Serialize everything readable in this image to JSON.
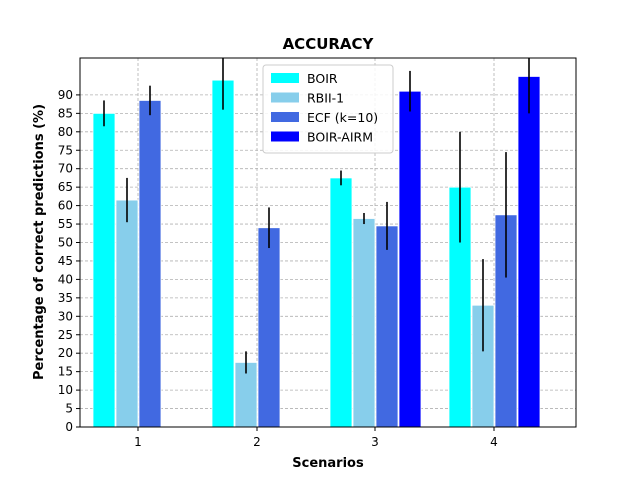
{
  "chart_data": {
    "type": "bar",
    "title": "ACCURACY",
    "xlabel": "Scenarios",
    "ylabel": "Percentage of correct predictions (%)",
    "categories": [
      "1",
      "2",
      "3",
      "4"
    ],
    "ylim": [
      0,
      100
    ],
    "yticks": [
      0,
      5,
      10,
      15,
      20,
      25,
      30,
      35,
      40,
      45,
      50,
      55,
      60,
      65,
      70,
      75,
      80,
      85,
      90
    ],
    "grid": true,
    "legend_position": "top-center",
    "series": [
      {
        "name": "BOIR",
        "color": "#00ffff",
        "values": [
          85,
          94,
          67.5,
          65
        ],
        "errors": [
          3.5,
          8,
          2,
          15
        ]
      },
      {
        "name": "RBII-1",
        "color": "#87ceeb",
        "values": [
          61.5,
          17.5,
          56.5,
          33
        ],
        "errors": [
          6,
          3,
          1.5,
          12.5
        ]
      },
      {
        "name": "ECF (k=10)",
        "color": "#4169e1",
        "values": [
          88.5,
          54,
          54.5,
          57.5
        ],
        "errors": [
          4,
          5.5,
          6.5,
          17
        ]
      },
      {
        "name": "BOIR-AIRM",
        "color": "#0000ff",
        "values": [
          null,
          null,
          91,
          95
        ],
        "errors": [
          null,
          null,
          5.5,
          10
        ]
      }
    ]
  }
}
